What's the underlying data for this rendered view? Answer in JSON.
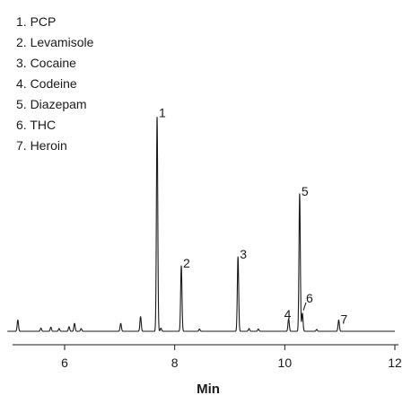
{
  "chart_data": {
    "type": "line",
    "title": "",
    "xlabel": "Min",
    "ylabel": "",
    "xlim": [
      5,
      12
    ],
    "ylim": [
      0,
      1
    ],
    "grid": false,
    "legend_placement": "top-left",
    "xticks": [
      6,
      8,
      10,
      12
    ],
    "tick_labels": [
      "6",
      "8",
      "10",
      "12"
    ],
    "line_color": "#1a1a1a",
    "legend": [
      "1. PCP",
      "2. Levamisole",
      "3. Cocaine",
      "4. Codeine",
      "5. Diazepam",
      "6. THC",
      "7. Heroin"
    ],
    "peaks": [
      {
        "label": "1",
        "x": 7.68,
        "y": 0.95
      },
      {
        "label": "2",
        "x": 8.12,
        "y": 0.29
      },
      {
        "label": "3",
        "x": 9.15,
        "y": 0.33
      },
      {
        "label": "4",
        "x": 10.07,
        "y": 0.055
      },
      {
        "label": "5",
        "x": 10.27,
        "y": 0.61
      },
      {
        "label": "6",
        "x": 10.32,
        "y": 0.08
      },
      {
        "label": "7",
        "x": 10.98,
        "y": 0.05
      }
    ],
    "minor_peaks": [
      {
        "x": 5.15,
        "y": 0.05
      },
      {
        "x": 5.57,
        "y": 0.014
      },
      {
        "x": 5.75,
        "y": 0.018
      },
      {
        "x": 5.9,
        "y": 0.012
      },
      {
        "x": 6.08,
        "y": 0.02
      },
      {
        "x": 6.18,
        "y": 0.035
      },
      {
        "x": 6.3,
        "y": 0.012
      },
      {
        "x": 7.02,
        "y": 0.035
      },
      {
        "x": 7.38,
        "y": 0.065
      },
      {
        "x": 7.75,
        "y": 0.014
      },
      {
        "x": 8.45,
        "y": 0.01
      },
      {
        "x": 9.35,
        "y": 0.012
      },
      {
        "x": 9.52,
        "y": 0.01
      },
      {
        "x": 10.58,
        "y": 0.008
      }
    ]
  }
}
